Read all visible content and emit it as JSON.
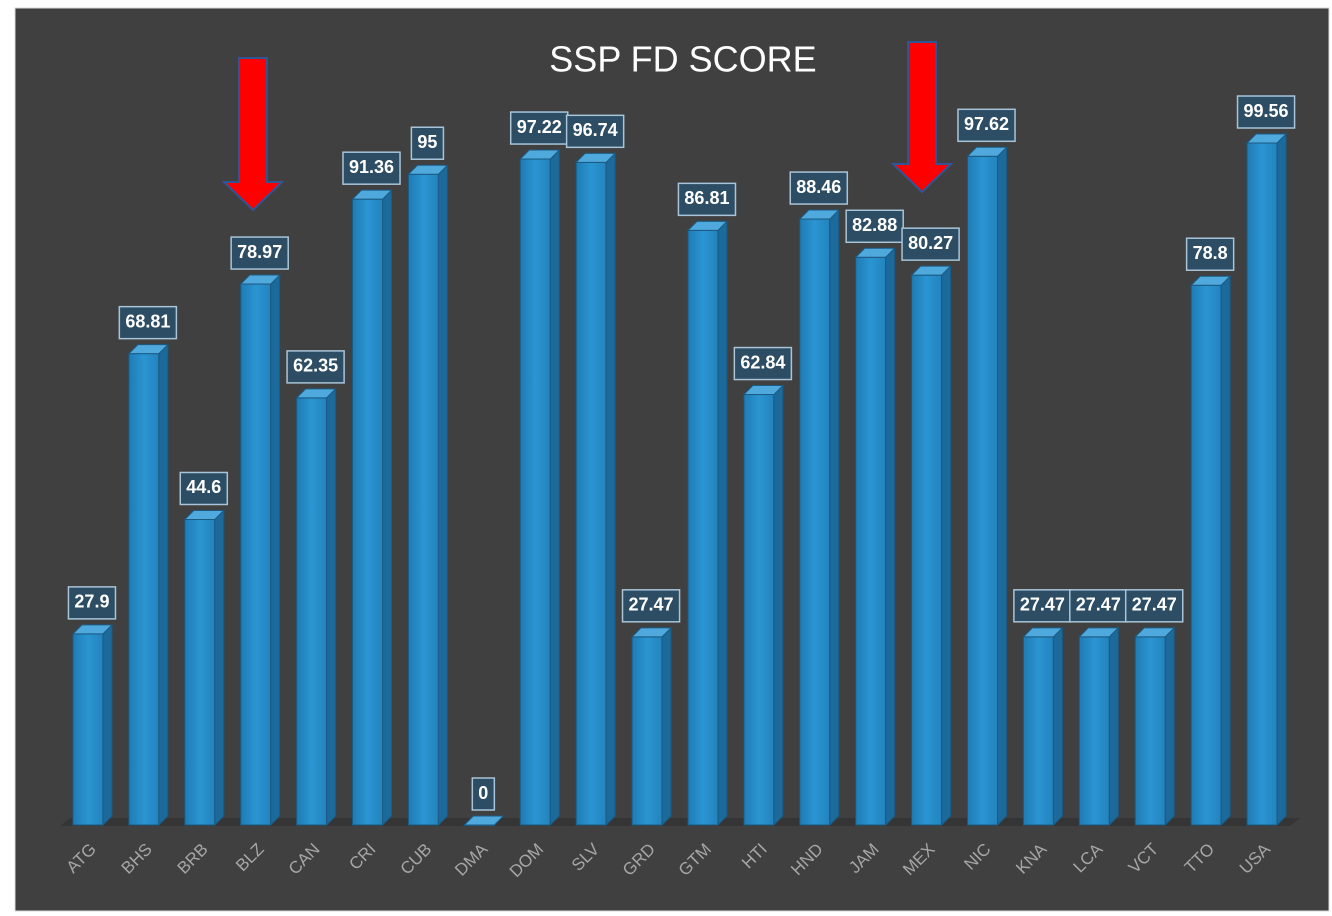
{
  "chart_data": {
    "type": "bar",
    "title": "SSP FD SCORE",
    "categories": [
      "ATG",
      "BHS",
      "BRB",
      "BLZ",
      "CAN",
      "CRI",
      "CUB",
      "DMA",
      "DOM",
      "SLV",
      "GRD",
      "GTM",
      "HTI",
      "HND",
      "JAM",
      "MEX",
      "NIC",
      "KNA",
      "LCA",
      "VCT",
      "TTO",
      "USA"
    ],
    "values": [
      27.9,
      68.81,
      44.6,
      78.97,
      62.35,
      91.36,
      95,
      0,
      97.22,
      96.74,
      27.47,
      86.81,
      62.84,
      88.46,
      82.88,
      80.27,
      97.62,
      27.47,
      27.47,
      27.47,
      78.8,
      99.56
    ],
    "color": "#2a8cc6",
    "ylim": [
      0,
      100
    ]
  }
}
